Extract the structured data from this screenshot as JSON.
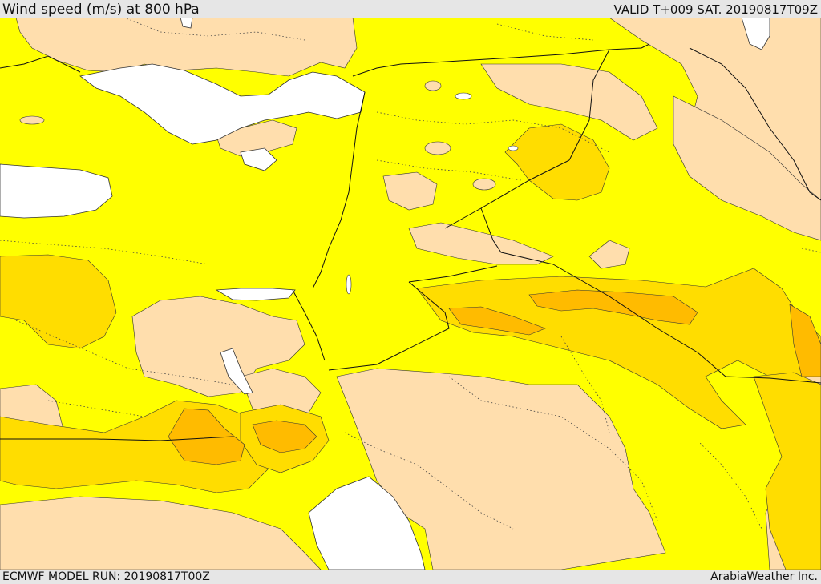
{
  "header": {
    "title": "Wind speed (m/s) at 800 hPa",
    "valid_time": "VALID T+009 SAT. 20190817T09Z"
  },
  "footer": {
    "model_run": "ECMWF MODEL RUN: 20190817T00Z",
    "brand": "ArabiaWeather Inc."
  },
  "legend_colors": {
    "sea_background": "#ffffff",
    "band_low": "#ffdead",
    "band_mid": "#ffff00",
    "band_high": "#ffdd00",
    "band_peak": "#ffbb00"
  }
}
